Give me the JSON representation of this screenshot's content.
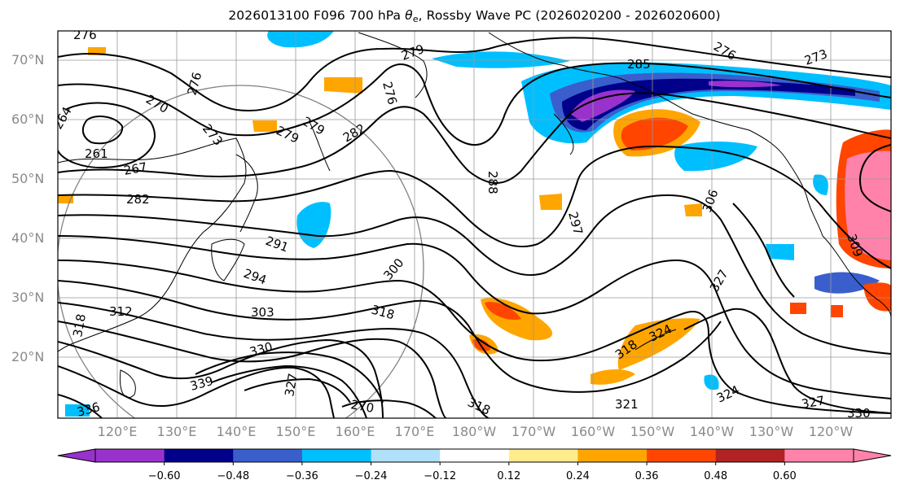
{
  "title": {
    "prefix": "2026013100 F096 700 hPa ",
    "theta": "θ",
    "theta_sub": "e",
    "suffix": ", Rossby Wave PC (2026020200 - 2026020600)"
  },
  "axes": {
    "lat_labels": [
      "70°N",
      "60°N",
      "50°N",
      "40°N",
      "30°N",
      "20°N"
    ],
    "lon_labels": [
      "120°E",
      "130°E",
      "140°E",
      "150°E",
      "160°E",
      "170°E",
      "180°W",
      "170°W",
      "160°W",
      "150°W",
      "140°W",
      "130°W",
      "120°W"
    ]
  },
  "contour_labels": [
    "276",
    "270",
    "276",
    "279",
    "276",
    "279",
    "276",
    "273",
    "285",
    "264",
    "261",
    "273",
    "279",
    "282",
    "267",
    "282",
    "288",
    "297",
    "306",
    "291",
    "294",
    "300",
    "309",
    "303",
    "318",
    "312",
    "318",
    "327",
    "318",
    "330",
    "339",
    "324",
    "327",
    "318",
    "321",
    "324",
    "327",
    "330",
    "336",
    "270"
  ],
  "colorbar": {
    "tick_labels": [
      "−0.60",
      "−0.48",
      "−0.36",
      "−0.24",
      "−0.12",
      "0.12",
      "0.24",
      "0.36",
      "0.48",
      "0.60"
    ],
    "colors": [
      "#9932cc",
      "#00008b",
      "#3a5fcd",
      "#00bfff",
      "#b0e0fa",
      "#ffffff",
      "#ffec8b",
      "#ffa500",
      "#ff4500",
      "#b22222",
      "#ff82ab"
    ],
    "under_color": "#9932cc",
    "over_color": "#ff82ab"
  },
  "colors": {
    "contour": "#000000",
    "grid": "#999999",
    "coast": "#000000",
    "tick_text": "#8a8a8a"
  }
}
